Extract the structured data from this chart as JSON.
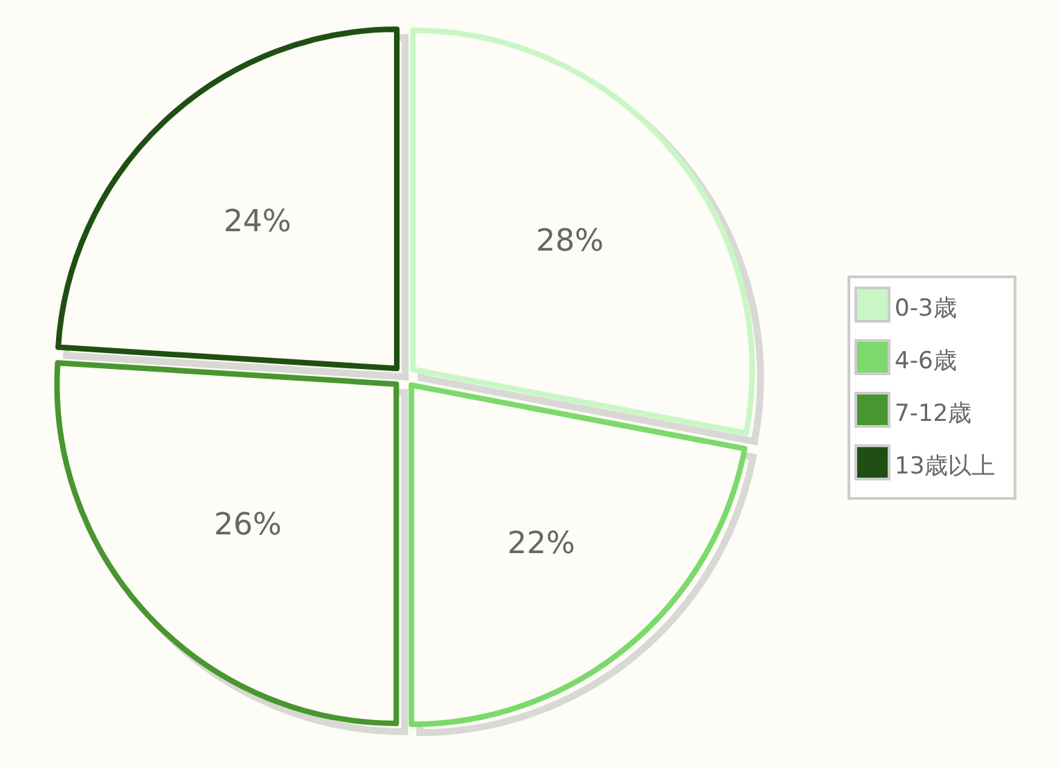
{
  "chart_data": {
    "type": "pie",
    "categories": [
      "0-3歳",
      "4-6歳",
      "7-12歳",
      "13歳以上"
    ],
    "values": [
      28,
      22,
      26,
      24
    ],
    "colors": [
      "#c8f7c5",
      "#7cd96c",
      "#48962f",
      "#1f4f12"
    ],
    "value_labels": [
      "28%",
      "22%",
      "26%",
      "24%"
    ],
    "legend": "right"
  }
}
